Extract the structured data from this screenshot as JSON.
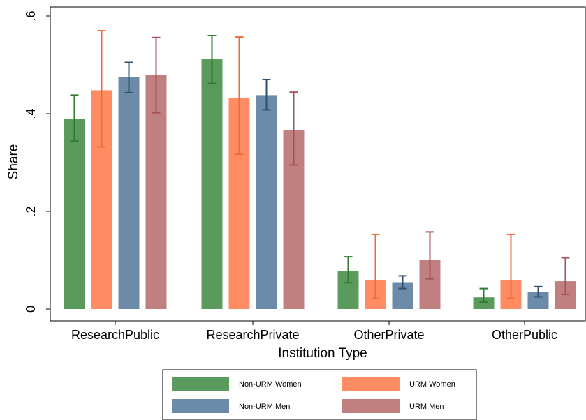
{
  "chart_data": {
    "type": "bar",
    "xlabel": "Institution Type",
    "ylabel": "Share",
    "ylim": [
      0,
      0.6
    ],
    "yticks": [
      0,
      0.2,
      0.4,
      0.6
    ],
    "ytick_labels": [
      "0",
      ".2",
      ".4",
      ".6"
    ],
    "categories": [
      "ResearchPublic",
      "ResearchPrivate",
      "OtherPrivate",
      "OtherPublic"
    ],
    "series": [
      {
        "name": "Non-URM Women",
        "color": "#5a9a5c",
        "error_color": "#2e7a2e",
        "values": [
          0.39,
          0.512,
          0.078,
          0.024
        ],
        "ci_low": [
          0.344,
          0.462,
          0.054,
          0.014
        ],
        "ci_high": [
          0.438,
          0.56,
          0.107,
          0.042
        ]
      },
      {
        "name": "URM Women",
        "color": "#ff8c62",
        "error_color": "#f06a3a",
        "values": [
          0.448,
          0.432,
          0.06,
          0.06
        ],
        "ci_low": [
          0.332,
          0.317,
          0.022,
          0.022
        ],
        "ci_high": [
          0.57,
          0.557,
          0.153,
          0.153
        ]
      },
      {
        "name": "Non-URM Men",
        "color": "#6b8ba8",
        "error_color": "#2e4e6e",
        "values": [
          0.475,
          0.438,
          0.055,
          0.035
        ],
        "ci_low": [
          0.443,
          0.408,
          0.042,
          0.025
        ],
        "ci_high": [
          0.505,
          0.47,
          0.068,
          0.046
        ]
      },
      {
        "name": "URM Men",
        "color": "#c08080",
        "error_color": "#a5505a",
        "values": [
          0.479,
          0.367,
          0.101,
          0.057
        ],
        "ci_low": [
          0.402,
          0.295,
          0.062,
          0.03
        ],
        "ci_high": [
          0.556,
          0.444,
          0.158,
          0.105
        ]
      }
    ],
    "legend": {
      "placement": "bottom",
      "columns": 2
    },
    "grid": false
  }
}
